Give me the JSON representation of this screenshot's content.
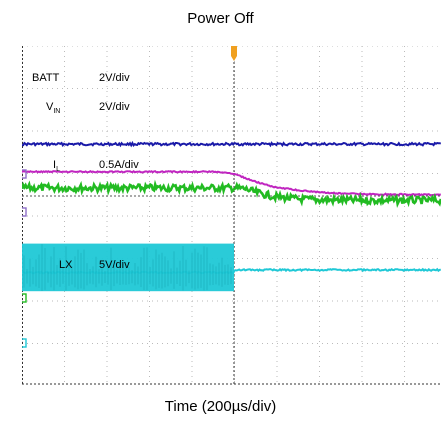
{
  "chart_data": {
    "type": "line",
    "title": "Power Off",
    "xlabel": "Time (200µs/div)",
    "ylabel": "",
    "x_unit": "µs",
    "x_range": [
      0,
      2000
    ],
    "grid": true,
    "trigger_x": 1000,
    "series": [
      {
        "name": "BATT",
        "name_sub": "",
        "scale": "2V/div",
        "color": "#1a1aa8",
        "x": [
          0,
          1000,
          2000
        ],
        "y": [
          6.1,
          6.1,
          6.1
        ]
      },
      {
        "name": "V",
        "name_sub": "IN",
        "scale": "2V/div",
        "color": "#c026c0",
        "x": [
          0,
          900,
          1000,
          1100,
          1200,
          1350,
          1500,
          1700,
          2000
        ],
        "y": [
          2.85,
          2.85,
          2.6,
          1.7,
          1.0,
          0.55,
          0.3,
          0.2,
          0.15
        ]
      },
      {
        "name": "I",
        "name_sub": "L",
        "scale": "0.5A/div",
        "color": "#22bb22",
        "x": [
          0,
          1000,
          1050,
          1100,
          1150,
          1200,
          1300,
          1400,
          1550,
          1700,
          2000
        ],
        "y": [
          0.95,
          0.95,
          0.85,
          0.45,
          0.15,
          -0.1,
          -0.35,
          -0.45,
          -0.5,
          -0.52,
          -0.52
        ]
      },
      {
        "name": "LX",
        "name_sub": "",
        "scale": "5V/div",
        "color": "#1fc8d6",
        "x": [
          0,
          1000,
          1001,
          2000
        ],
        "y": [
          -9.0,
          -9.0,
          -8.7,
          -8.7
        ]
      }
    ]
  }
}
